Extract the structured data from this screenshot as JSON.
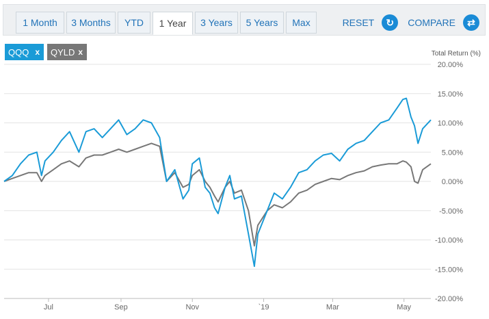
{
  "tabs": [
    {
      "label": "1 Month"
    },
    {
      "label": "3 Months"
    },
    {
      "label": "YTD"
    },
    {
      "label": "1 Year",
      "active": true
    },
    {
      "label": "3 Years"
    },
    {
      "label": "5 Years"
    },
    {
      "label": "Max"
    }
  ],
  "actions": {
    "reset_label": "RESET",
    "reset_icon": "refresh-icon",
    "compare_label": "COMPARE",
    "compare_icon": "swap-arrows-icon"
  },
  "chips": [
    {
      "label": "QQQ",
      "color": "#1a9bd7",
      "remove_icon": "close-icon"
    },
    {
      "label": "QYLD",
      "color": "#777777",
      "remove_icon": "close-icon"
    }
  ],
  "chart_data": {
    "type": "line",
    "ylabel": "Total Return (%)",
    "ylim": [
      -20,
      20
    ],
    "yticks": [
      20,
      15,
      10,
      5,
      0,
      -5,
      -10,
      -15,
      -20
    ],
    "ytick_labels": [
      "20.00%",
      "15.00%",
      "10.00%",
      "5.00%",
      "0.00%",
      "-5.00%",
      "-10.00%",
      "-15.00%",
      "-20.00%"
    ],
    "x_range": [
      "2018-05-24",
      "2019-05-24"
    ],
    "x_ticks": [
      {
        "date": "2018-07-01",
        "label": "Jul"
      },
      {
        "date": "2018-09-01",
        "label": "Sep"
      },
      {
        "date": "2018-11-01",
        "label": "Nov"
      },
      {
        "date": "2019-01-01",
        "label": "`19"
      },
      {
        "date": "2019-03-01",
        "label": "Mar"
      },
      {
        "date": "2019-05-01",
        "label": "May"
      }
    ],
    "grid": true,
    "series": [
      {
        "name": "QQQ",
        "color": "#1a9bd7",
        "x": [
          "2018-05-24",
          "2018-05-31",
          "2018-06-07",
          "2018-06-14",
          "2018-06-21",
          "2018-06-25",
          "2018-06-28",
          "2018-07-05",
          "2018-07-12",
          "2018-07-19",
          "2018-07-27",
          "2018-08-02",
          "2018-08-09",
          "2018-08-16",
          "2018-08-23",
          "2018-08-30",
          "2018-09-06",
          "2018-09-13",
          "2018-09-20",
          "2018-09-27",
          "2018-10-04",
          "2018-10-10",
          "2018-10-17",
          "2018-10-24",
          "2018-10-29",
          "2018-11-01",
          "2018-11-07",
          "2018-11-12",
          "2018-11-16",
          "2018-11-20",
          "2018-11-23",
          "2018-11-29",
          "2018-12-03",
          "2018-12-07",
          "2018-12-13",
          "2018-12-19",
          "2018-12-24",
          "2018-12-27",
          "2019-01-04",
          "2019-01-10",
          "2019-01-17",
          "2019-01-24",
          "2019-01-31",
          "2019-02-07",
          "2019-02-14",
          "2019-02-21",
          "2019-02-28",
          "2019-03-07",
          "2019-03-14",
          "2019-03-21",
          "2019-03-28",
          "2019-04-04",
          "2019-04-11",
          "2019-04-18",
          "2019-04-25",
          "2019-04-30",
          "2019-05-03",
          "2019-05-07",
          "2019-05-10",
          "2019-05-13",
          "2019-05-17",
          "2019-05-24"
        ],
        "y": [
          0.0,
          1.0,
          3.0,
          4.5,
          5.0,
          1.0,
          3.5,
          5.0,
          7.0,
          8.5,
          5.0,
          8.5,
          9.0,
          7.5,
          9.0,
          10.5,
          8.0,
          9.0,
          10.5,
          10.0,
          7.5,
          0.0,
          2.0,
          -3.0,
          -1.5,
          3.0,
          4.0,
          -1.0,
          -2.0,
          -4.5,
          -5.5,
          -1.0,
          1.0,
          -3.0,
          -2.5,
          -9.0,
          -14.5,
          -9.0,
          -5.0,
          -2.0,
          -3.0,
          -1.0,
          1.5,
          2.0,
          3.5,
          4.5,
          4.8,
          3.5,
          5.5,
          6.5,
          7.0,
          8.5,
          10.0,
          10.5,
          12.5,
          14.0,
          14.2,
          11.0,
          9.5,
          6.5,
          9.0,
          10.5
        ]
      },
      {
        "name": "QYLD",
        "color": "#777777",
        "x": [
          "2018-05-24",
          "2018-05-31",
          "2018-06-07",
          "2018-06-14",
          "2018-06-21",
          "2018-06-25",
          "2018-06-28",
          "2018-07-05",
          "2018-07-12",
          "2018-07-19",
          "2018-07-27",
          "2018-08-02",
          "2018-08-09",
          "2018-08-16",
          "2018-08-23",
          "2018-08-30",
          "2018-09-06",
          "2018-09-13",
          "2018-09-20",
          "2018-09-27",
          "2018-10-04",
          "2018-10-10",
          "2018-10-17",
          "2018-10-24",
          "2018-10-29",
          "2018-11-01",
          "2018-11-07",
          "2018-11-12",
          "2018-11-16",
          "2018-11-20",
          "2018-11-23",
          "2018-11-29",
          "2018-12-03",
          "2018-12-07",
          "2018-12-13",
          "2018-12-19",
          "2018-12-24",
          "2018-12-27",
          "2019-01-04",
          "2019-01-10",
          "2019-01-17",
          "2019-01-24",
          "2019-01-31",
          "2019-02-07",
          "2019-02-14",
          "2019-02-21",
          "2019-02-28",
          "2019-03-07",
          "2019-03-14",
          "2019-03-21",
          "2019-03-28",
          "2019-04-04",
          "2019-04-11",
          "2019-04-18",
          "2019-04-25",
          "2019-04-30",
          "2019-05-03",
          "2019-05-07",
          "2019-05-10",
          "2019-05-13",
          "2019-05-17",
          "2019-05-24"
        ],
        "y": [
          0.0,
          0.5,
          1.0,
          1.5,
          1.5,
          0.0,
          1.0,
          2.0,
          3.0,
          3.5,
          2.5,
          4.0,
          4.5,
          4.5,
          5.0,
          5.5,
          5.0,
          5.5,
          6.0,
          6.5,
          6.0,
          0.0,
          1.5,
          -1.0,
          -0.5,
          1.0,
          2.0,
          0.0,
          -1.0,
          -2.5,
          -3.5,
          -1.0,
          0.0,
          -2.0,
          -1.5,
          -5.0,
          -11.0,
          -7.5,
          -5.0,
          -4.0,
          -4.5,
          -3.5,
          -2.0,
          -1.5,
          -0.5,
          0.0,
          0.5,
          0.3,
          1.0,
          1.5,
          1.8,
          2.5,
          2.8,
          3.0,
          3.0,
          3.5,
          3.3,
          2.5,
          0.0,
          -0.3,
          2.0,
          3.0
        ]
      }
    ]
  }
}
